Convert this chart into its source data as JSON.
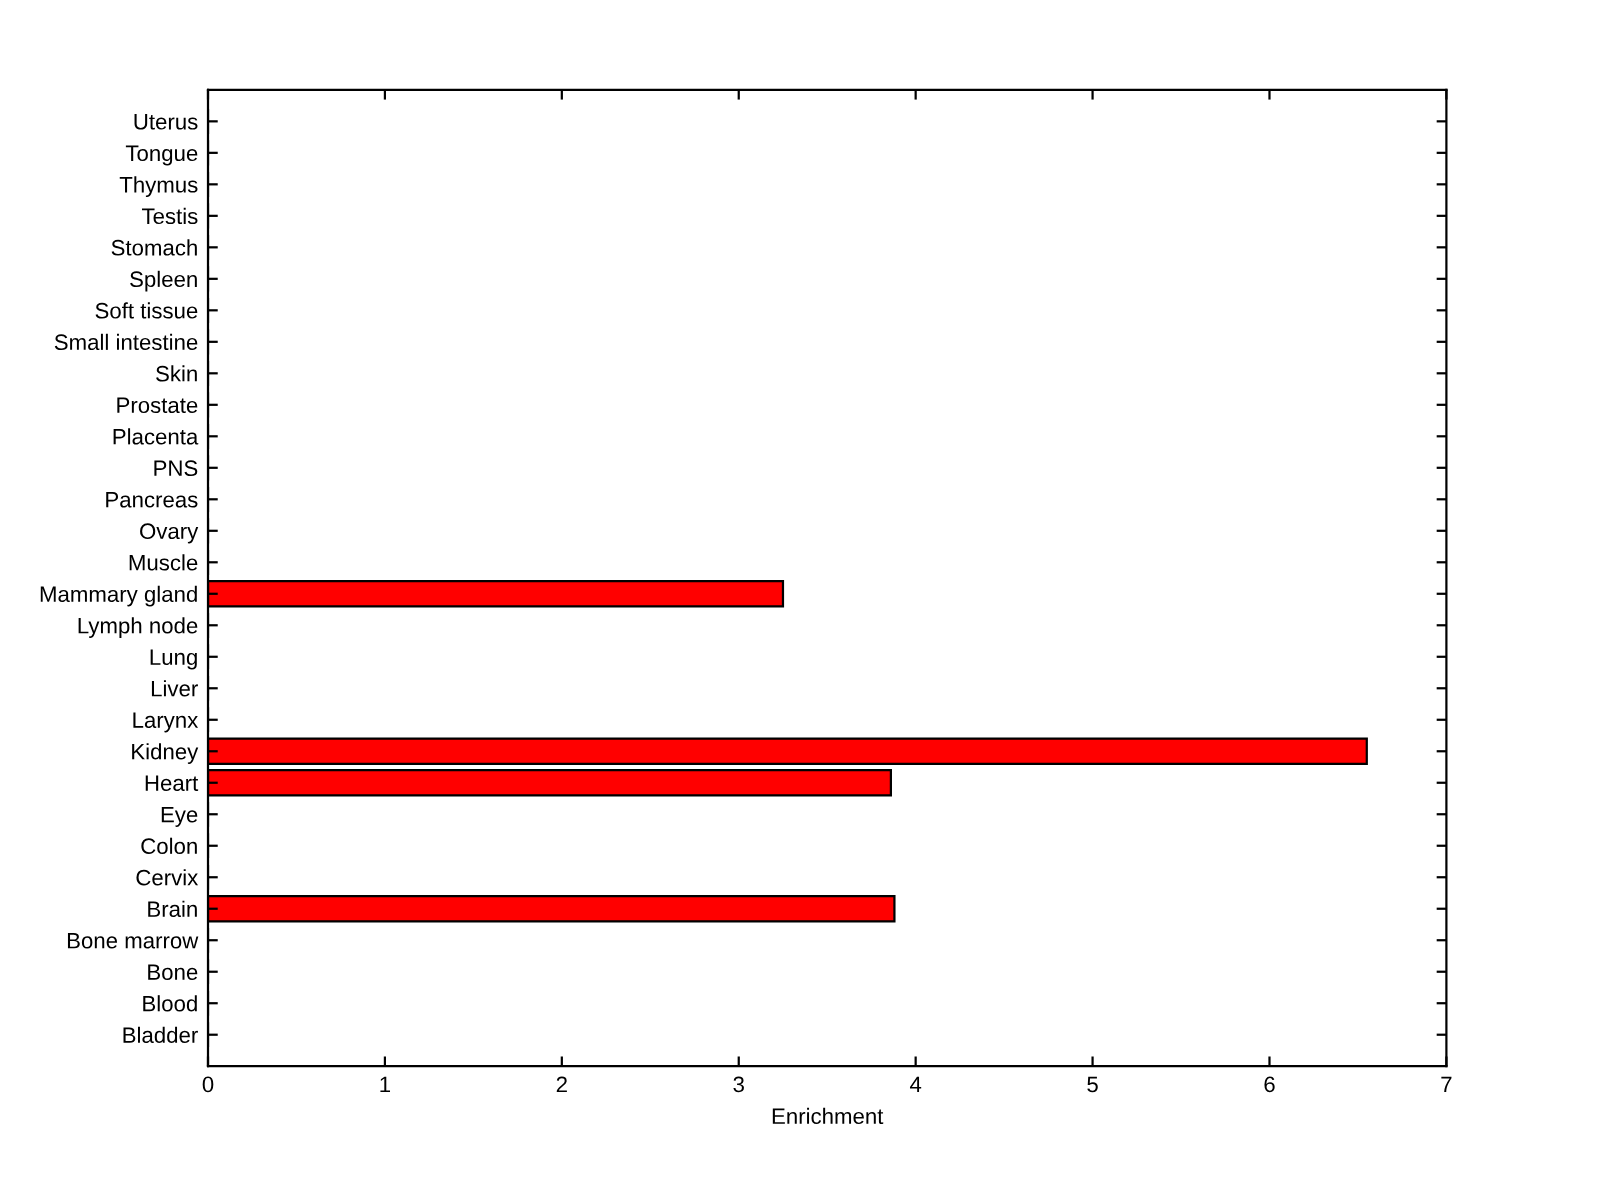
{
  "chart_data": {
    "type": "bar",
    "orientation": "horizontal",
    "xlabel": "Enrichment",
    "categories": [
      "Uterus",
      "Tongue",
      "Thymus",
      "Testis",
      "Stomach",
      "Spleen",
      "Soft tissue",
      "Small intestine",
      "Skin",
      "Prostate",
      "Placenta",
      "PNS",
      "Pancreas",
      "Ovary",
      "Muscle",
      "Mammary gland",
      "Lymph node",
      "Lung",
      "Liver",
      "Larynx",
      "Kidney",
      "Heart",
      "Eye",
      "Colon",
      "Cervix",
      "Brain",
      "Bone marrow",
      "Bone",
      "Blood",
      "Bladder"
    ],
    "values": [
      0,
      0,
      0,
      0,
      0,
      0,
      0,
      0,
      0,
      0,
      0,
      0,
      0,
      0,
      0,
      3.25,
      0,
      0,
      0,
      0,
      6.55,
      3.86,
      0,
      0,
      0,
      3.88,
      0,
      0,
      0,
      0
    ],
    "color": "#ff0000",
    "xlim": [
      0,
      7
    ],
    "xticks": [
      0,
      1,
      2,
      3,
      4,
      5,
      6,
      7
    ],
    "grid": false
  }
}
